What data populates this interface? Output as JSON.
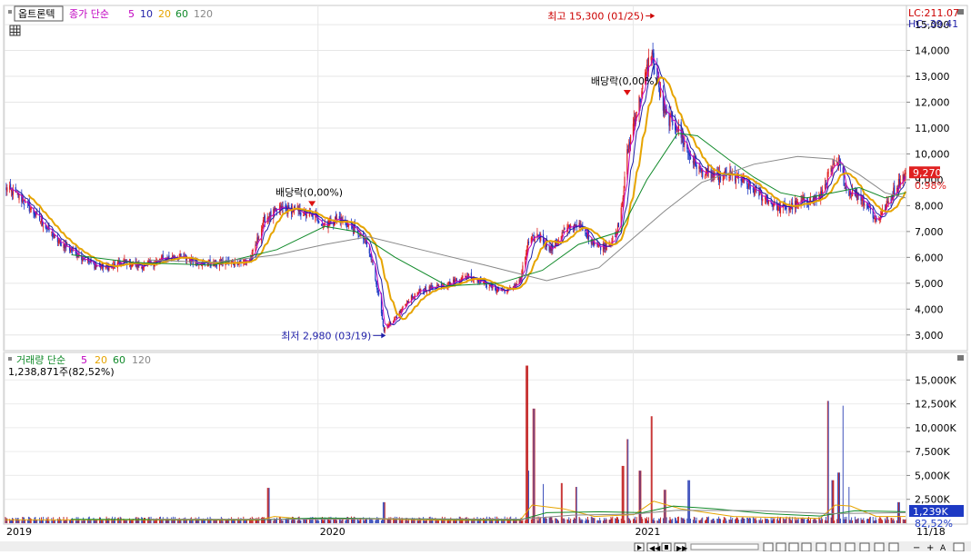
{
  "chart_data": [
    {
      "type": "candlestick",
      "stock_name": "옵트론텍",
      "legend": {
        "label": "종가 단순",
        "periods": [
          {
            "name": "5",
            "color": "#c000c0"
          },
          {
            "name": "10",
            "color": "#1f1fa8"
          },
          {
            "name": "20",
            "color": "#e6a400"
          },
          {
            "name": "60",
            "color": "#118a2a"
          },
          {
            "name": "120",
            "color": "#888888"
          }
        ]
      },
      "y_ticks": [
        "3,000",
        "4,000",
        "5,000",
        "6,000",
        "7,000",
        "8,000",
        "9,000",
        "10,000",
        "11,000",
        "12,000",
        "13,000",
        "14,000",
        "15,000"
      ],
      "ylim": [
        2500,
        15600
      ],
      "xlim": [
        "2019-01-01",
        "2021-11-18"
      ],
      "x_ticks": [
        {
          "date": "2019-01-01",
          "label": "2019"
        },
        {
          "date": "2020-01-02",
          "label": "2020"
        },
        {
          "date": "2021-01-04",
          "label": "2021"
        },
        {
          "date": "2021-11-18",
          "label": "11/18"
        }
      ],
      "lc_label": "LC:211.07",
      "hc_label": "HC:-39.41",
      "last_price": {
        "value": 9270,
        "label": "9,270",
        "change_label": "0.98%"
      },
      "high_marker": {
        "date": "2021-01-25",
        "value": 15300,
        "label": "최고 15,300 (01/25)"
      },
      "low_marker": {
        "date": "2020-03-19",
        "value": 2980,
        "label": "최저 2,980 (03/19)"
      },
      "dividend_markers": [
        {
          "date": "2019-12-26",
          "value": 8000,
          "label": "배당락(0,00%)"
        },
        {
          "date": "2020-12-28",
          "value": 12300,
          "label": "배당락(0,00%)"
        }
      ],
      "close_path": [
        [
          "2019-01-02",
          8700
        ],
        [
          "2019-01-20",
          8300
        ],
        [
          "2019-02-10",
          7500
        ],
        [
          "2019-03-05",
          6600
        ],
        [
          "2019-03-25",
          6200
        ],
        [
          "2019-04-15",
          5700
        ],
        [
          "2019-05-05",
          5600
        ],
        [
          "2019-05-20",
          5850
        ],
        [
          "2019-06-10",
          5650
        ],
        [
          "2019-07-01",
          5900
        ],
        [
          "2019-07-20",
          6050
        ],
        [
          "2019-08-10",
          5850
        ],
        [
          "2019-09-01",
          5750
        ],
        [
          "2019-09-25",
          5800
        ],
        [
          "2019-10-15",
          5900
        ],
        [
          "2019-11-01",
          7500
        ],
        [
          "2019-11-20",
          7900
        ],
        [
          "2019-12-10",
          7800
        ],
        [
          "2019-12-26",
          7600
        ],
        [
          "2020-01-10",
          7300
        ],
        [
          "2020-01-25",
          7500
        ],
        [
          "2020-02-10",
          7200
        ],
        [
          "2020-02-25",
          6700
        ],
        [
          "2020-03-05",
          5800
        ],
        [
          "2020-03-12",
          4700
        ],
        [
          "2020-03-19",
          3200
        ],
        [
          "2020-03-30",
          3500
        ],
        [
          "2020-04-15",
          4300
        ],
        [
          "2020-05-01",
          4700
        ],
        [
          "2020-05-20",
          4900
        ],
        [
          "2020-06-05",
          5000
        ],
        [
          "2020-06-25",
          5300
        ],
        [
          "2020-07-10",
          5100
        ],
        [
          "2020-07-25",
          4800
        ],
        [
          "2020-08-10",
          4700
        ],
        [
          "2020-08-25",
          5100
        ],
        [
          "2020-09-03",
          6500
        ],
        [
          "2020-09-15",
          6900
        ],
        [
          "2020-09-30",
          6300
        ],
        [
          "2020-10-15",
          7000
        ],
        [
          "2020-10-30",
          7300
        ],
        [
          "2020-11-10",
          6900
        ],
        [
          "2020-11-25",
          6400
        ],
        [
          "2020-12-05",
          6500
        ],
        [
          "2020-12-15",
          6800
        ],
        [
          "2020-12-22",
          8000
        ],
        [
          "2020-12-28",
          10000
        ],
        [
          "2021-01-06",
          11500
        ],
        [
          "2021-01-15",
          12500
        ],
        [
          "2021-01-25",
          14000
        ],
        [
          "2021-02-01",
          12800
        ],
        [
          "2021-02-10",
          11500
        ],
        [
          "2021-02-25",
          11000
        ],
        [
          "2021-03-10",
          10000
        ],
        [
          "2021-03-25",
          9300
        ],
        [
          "2021-04-10",
          9100
        ],
        [
          "2021-04-25",
          9200
        ],
        [
          "2021-05-10",
          9000
        ],
        [
          "2021-05-25",
          8600
        ],
        [
          "2021-06-10",
          8200
        ],
        [
          "2021-06-25",
          7900
        ],
        [
          "2021-07-10",
          8000
        ],
        [
          "2021-07-25",
          8200
        ],
        [
          "2021-08-10",
          8300
        ],
        [
          "2021-08-20",
          9200
        ],
        [
          "2021-09-01",
          9700
        ],
        [
          "2021-09-10",
          8600
        ],
        [
          "2021-09-25",
          8400
        ],
        [
          "2021-10-05",
          8000
        ],
        [
          "2021-10-15",
          7400
        ],
        [
          "2021-10-25",
          7900
        ],
        [
          "2021-11-05",
          8600
        ],
        [
          "2021-11-12",
          9000
        ],
        [
          "2021-11-18",
          9270
        ]
      ],
      "ma60_path": [
        [
          "2019-03-20",
          6100
        ],
        [
          "2019-06-01",
          5800
        ],
        [
          "2019-09-01",
          5700
        ],
        [
          "2019-11-15",
          6300
        ],
        [
          "2020-01-10",
          7200
        ],
        [
          "2020-02-15",
          7000
        ],
        [
          "2020-04-01",
          6000
        ],
        [
          "2020-06-01",
          4900
        ],
        [
          "2020-08-01",
          5000
        ],
        [
          "2020-09-20",
          5500
        ],
        [
          "2020-11-01",
          6500
        ],
        [
          "2020-12-20",
          7000
        ],
        [
          "2021-01-20",
          9000
        ],
        [
          "2021-02-25",
          10800
        ],
        [
          "2021-03-20",
          10700
        ],
        [
          "2021-04-25",
          9800
        ],
        [
          "2021-05-25",
          9100
        ],
        [
          "2021-06-25",
          8500
        ],
        [
          "2021-07-25",
          8300
        ],
        [
          "2021-08-25",
          8500
        ],
        [
          "2021-09-25",
          8700
        ],
        [
          "2021-10-25",
          8300
        ],
        [
          "2021-11-18",
          8500
        ]
      ],
      "ma120_path": [
        [
          "2019-06-20",
          5900
        ],
        [
          "2019-09-01",
          5800
        ],
        [
          "2019-11-15",
          6100
        ],
        [
          "2020-01-10",
          6500
        ],
        [
          "2020-03-01",
          6800
        ],
        [
          "2020-05-01",
          6300
        ],
        [
          "2020-07-15",
          5700
        ],
        [
          "2020-09-25",
          5100
        ],
        [
          "2020-11-25",
          5600
        ],
        [
          "2020-12-30",
          6600
        ],
        [
          "2021-02-10",
          7800
        ],
        [
          "2021-03-25",
          8900
        ],
        [
          "2021-05-25",
          9600
        ],
        [
          "2021-07-15",
          9900
        ],
        [
          "2021-08-25",
          9800
        ],
        [
          "2021-09-25",
          9200
        ],
        [
          "2021-10-25",
          8500
        ],
        [
          "2021-11-18",
          8300
        ]
      ]
    },
    {
      "type": "bar",
      "name": "거래량",
      "legend": {
        "label": "거래량 단순",
        "periods": [
          {
            "name": "5",
            "color": "#c000c0"
          },
          {
            "name": "20",
            "color": "#e6a400"
          },
          {
            "name": "60",
            "color": "#118a2a"
          },
          {
            "name": "120",
            "color": "#888888"
          }
        ]
      },
      "current_label": "1,238,871주(82,52%)",
      "y_ticks": [
        "2,500K",
        "5,000K",
        "7,500K",
        "10,000K",
        "12,500K",
        "15,000K"
      ],
      "ylim": [
        0,
        17500
      ],
      "unit": "K",
      "last_value": {
        "value": 1239,
        "label": "1,239K",
        "ratio_label": "82,52%"
      },
      "volume_spikes": [
        [
          "2019-11-05",
          3700
        ],
        [
          "2020-03-19",
          2200
        ],
        [
          "2020-09-02",
          16500
        ],
        [
          "2020-09-04",
          5500
        ],
        [
          "2020-09-10",
          12000
        ],
        [
          "2020-09-20",
          4100
        ],
        [
          "2020-10-12",
          4200
        ],
        [
          "2020-10-30",
          3800
        ],
        [
          "2020-12-23",
          6000
        ],
        [
          "2020-12-28",
          8800
        ],
        [
          "2021-01-12",
          5500
        ],
        [
          "2021-01-25",
          11200
        ],
        [
          "2021-02-10",
          3500
        ],
        [
          "2021-03-10",
          4500
        ],
        [
          "2021-08-20",
          12800
        ],
        [
          "2021-08-25",
          4500
        ],
        [
          "2021-09-01",
          5300
        ],
        [
          "2021-09-05",
          12300
        ],
        [
          "2021-09-12",
          3800
        ],
        [
          "2021-11-10",
          2200
        ]
      ],
      "ma20_path": [
        [
          "2019-01-02",
          350
        ],
        [
          "2019-10-25",
          330
        ],
        [
          "2019-11-12",
          700
        ],
        [
          "2019-12-20",
          420
        ],
        [
          "2020-03-01",
          450
        ],
        [
          "2020-06-01",
          300
        ],
        [
          "2020-08-25",
          300
        ],
        [
          "2020-09-08",
          1900
        ],
        [
          "2020-10-15",
          1500
        ],
        [
          "2020-11-20",
          700
        ],
        [
          "2021-01-05",
          900
        ],
        [
          "2021-01-28",
          2300
        ],
        [
          "2021-03-01",
          1500
        ],
        [
          "2021-05-01",
          700
        ],
        [
          "2021-08-10",
          500
        ],
        [
          "2021-08-28",
          1900
        ],
        [
          "2021-09-15",
          1800
        ],
        [
          "2021-10-15",
          700
        ],
        [
          "2021-11-18",
          700
        ]
      ],
      "ma60_path": [
        [
          "2019-03-20",
          400
        ],
        [
          "2019-11-01",
          380
        ],
        [
          "2020-01-05",
          550
        ],
        [
          "2020-06-01",
          400
        ],
        [
          "2020-08-25",
          350
        ],
        [
          "2020-09-25",
          1100
        ],
        [
          "2020-11-25",
          1200
        ],
        [
          "2021-01-15",
          1100
        ],
        [
          "2021-02-20",
          1800
        ],
        [
          "2021-04-10",
          1500
        ],
        [
          "2021-06-10",
          1000
        ],
        [
          "2021-08-10",
          750
        ],
        [
          "2021-09-20",
          1300
        ],
        [
          "2021-11-18",
          1200
        ]
      ],
      "ma120_path": [
        [
          "2019-06-20",
          420
        ],
        [
          "2019-12-01",
          420
        ],
        [
          "2020-04-01",
          480
        ],
        [
          "2020-08-25",
          420
        ],
        [
          "2020-10-25",
          850
        ],
        [
          "2021-01-05",
          950
        ],
        [
          "2021-02-25",
          1350
        ],
        [
          "2021-06-01",
          1300
        ],
        [
          "2021-08-20",
          1000
        ],
        [
          "2021-11-18",
          1100
        ]
      ]
    }
  ]
}
